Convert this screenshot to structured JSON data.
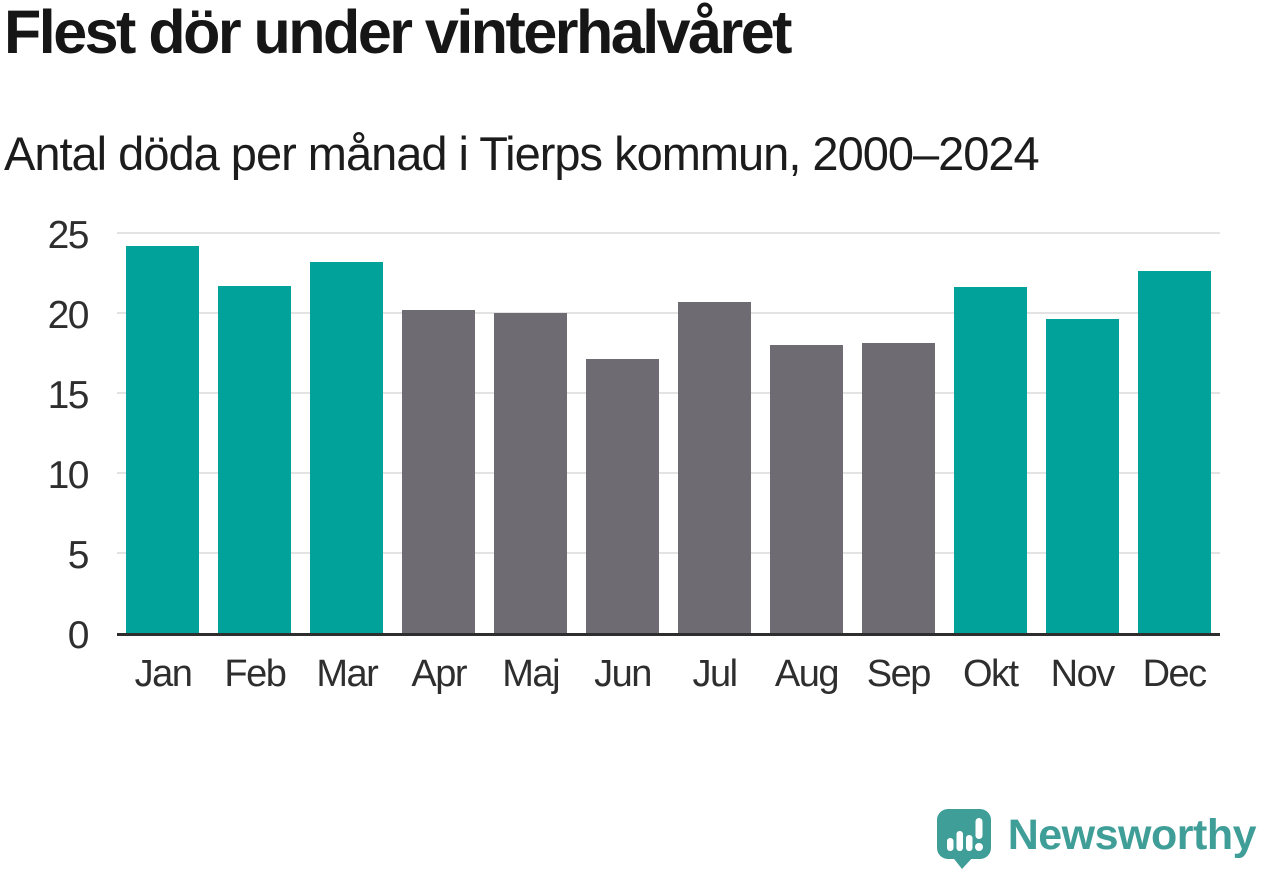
{
  "chart_data": {
    "type": "bar",
    "title": "Flest dör under vinterhalvåret",
    "subtitle": "Antal döda per månad i Tierps kommun, 2000–2024",
    "categories": [
      "Jan",
      "Feb",
      "Mar",
      "Apr",
      "Maj",
      "Jun",
      "Jul",
      "Aug",
      "Sep",
      "Okt",
      "Nov",
      "Dec"
    ],
    "values": [
      24.2,
      21.7,
      23.2,
      20.2,
      20.0,
      17.1,
      20.7,
      18.0,
      18.1,
      21.6,
      19.6,
      22.6
    ],
    "series_colors": [
      "teal",
      "teal",
      "teal",
      "gray",
      "gray",
      "gray",
      "gray",
      "gray",
      "gray",
      "teal",
      "teal",
      "teal"
    ],
    "xlabel": "",
    "ylabel": "",
    "ylim": [
      0,
      25
    ],
    "yticks": [
      0,
      5,
      10,
      15,
      20,
      25
    ],
    "grid": true,
    "legend": false
  },
  "colors": {
    "teal_bar": "#00a29a",
    "gray_bar": "#6e6c72",
    "gridline": "#e3e3e3",
    "axis": "#2e2e2e",
    "title_text": "#161616",
    "tick_text": "#2e2e2e",
    "logo": "#3f9e97",
    "background": "#ffffff"
  },
  "branding": {
    "name": "Newsworthy",
    "icon": "newsworthy-chart-bubble-icon"
  }
}
